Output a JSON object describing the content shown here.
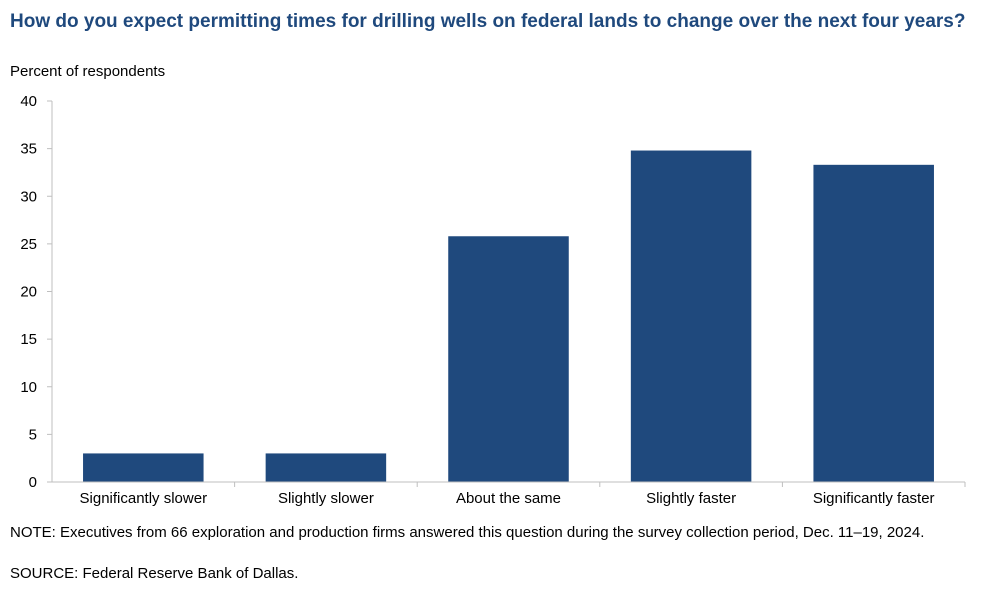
{
  "title": "How do you expect permitting times for drilling wells on federal lands to change over the next four years?",
  "subtitle": "Percent of respondents",
  "note": "NOTE: Executives from 66 exploration and production firms answered this question during the survey collection period, Dec. 11–19, 2024.",
  "source": "SOURCE: Federal Reserve Bank of Dallas.",
  "colors": {
    "bar": "#1f497d",
    "title": "#1f497d",
    "axis": "#bfbfbf"
  },
  "chart_data": {
    "type": "bar",
    "title": "How do you expect permitting times for drilling wells on federal lands to change over the next four years?",
    "ylabel": "Percent of respondents",
    "xlabel": "",
    "categories": [
      "Significantly slower",
      "Slightly slower",
      "About the same",
      "Slightly faster",
      "Significantly faster"
    ],
    "values": [
      3.0,
      3.0,
      25.8,
      34.8,
      33.3
    ],
    "ylim": [
      0,
      40
    ],
    "yticks": [
      0,
      5,
      10,
      15,
      20,
      25,
      30,
      35,
      40
    ],
    "grid": false,
    "legend": "none"
  }
}
